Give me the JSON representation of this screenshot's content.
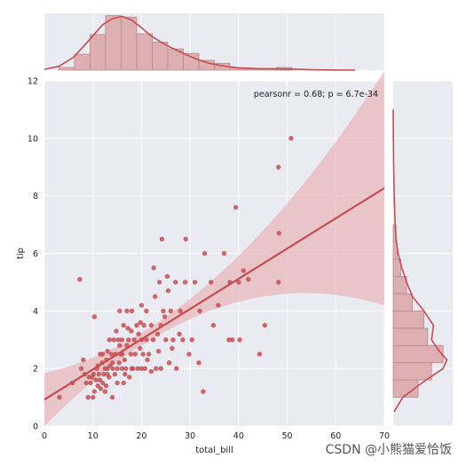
{
  "chart_data": {
    "type": "scatter",
    "title": "",
    "xlabel": "total_bill",
    "ylabel": "tip",
    "xlim": [
      0,
      70
    ],
    "ylim": [
      0,
      12
    ],
    "xticks": [
      0,
      10,
      20,
      30,
      40,
      50,
      60,
      70
    ],
    "yticks": [
      0,
      2,
      4,
      6,
      8,
      10,
      12
    ],
    "grid": true,
    "annotation": "pearsonr = 0.68; p = 6.7e-34",
    "colors": {
      "marker": "#c44e52",
      "hist_fill": "#dba5a6",
      "hist_edge": "#b98a8b",
      "band": "#e8b8bc",
      "panel_bg": "#eaeaf2",
      "grid": "#ffffff"
    },
    "regression": {
      "slope": 0.105,
      "intercept": 0.92,
      "x_range": [
        0,
        70
      ]
    },
    "points": [
      [
        3.1,
        1.0
      ],
      [
        5.8,
        1.5
      ],
      [
        7.3,
        5.1
      ],
      [
        7.6,
        2.0
      ],
      [
        8.3,
        1.8
      ],
      [
        8.6,
        1.5
      ],
      [
        9.0,
        1.0
      ],
      [
        9.5,
        1.5
      ],
      [
        9.8,
        1.7
      ],
      [
        10.1,
        1.8
      ],
      [
        10.3,
        1.2
      ],
      [
        10.3,
        3.8
      ],
      [
        10.6,
        1.6
      ],
      [
        10.8,
        2.0
      ],
      [
        11.0,
        1.4
      ],
      [
        11.0,
        2.1
      ],
      [
        11.2,
        1.8
      ],
      [
        11.4,
        1.6
      ],
      [
        11.6,
        1.3
      ],
      [
        11.9,
        2.2
      ],
      [
        12.0,
        1.5
      ],
      [
        12.0,
        2.5
      ],
      [
        12.2,
        1.8
      ],
      [
        12.5,
        2.0
      ],
      [
        12.7,
        1.4
      ],
      [
        12.8,
        2.3
      ],
      [
        13.0,
        2.0
      ],
      [
        13.0,
        2.6
      ],
      [
        13.3,
        1.7
      ],
      [
        13.4,
        3.0
      ],
      [
        13.5,
        2.1
      ],
      [
        13.8,
        2.5
      ],
      [
        14.0,
        1.0
      ],
      [
        14.1,
        2.0
      ],
      [
        14.3,
        3.0
      ],
      [
        14.5,
        1.8
      ],
      [
        14.7,
        2.5
      ],
      [
        14.8,
        3.3
      ],
      [
        15.0,
        2.0
      ],
      [
        15.0,
        1.5
      ],
      [
        15.2,
        3.0
      ],
      [
        15.4,
        2.2
      ],
      [
        15.5,
        4.0
      ],
      [
        15.7,
        2.5
      ],
      [
        16.0,
        3.0
      ],
      [
        16.0,
        2.0
      ],
      [
        16.3,
        1.5
      ],
      [
        16.3,
        3.5
      ],
      [
        16.5,
        2.3
      ],
      [
        16.8,
        2.0
      ],
      [
        17.0,
        4.0
      ],
      [
        17.0,
        2.8
      ],
      [
        17.3,
        3.0
      ],
      [
        17.5,
        1.7
      ],
      [
        17.8,
        2.5
      ],
      [
        17.9,
        3.3
      ],
      [
        18.0,
        4.0
      ],
      [
        18.2,
        2.0
      ],
      [
        18.5,
        3.0
      ],
      [
        18.7,
        2.5
      ],
      [
        19.0,
        3.5
      ],
      [
        19.2,
        2.0
      ],
      [
        19.4,
        3.2
      ],
      [
        19.7,
        2.7
      ],
      [
        20.0,
        3.0
      ],
      [
        20.0,
        4.2
      ],
      [
        20.3,
        2.5
      ],
      [
        20.5,
        3.5
      ],
      [
        20.7,
        2.0
      ],
      [
        21.0,
        3.0
      ],
      [
        21.0,
        4.0
      ],
      [
        21.5,
        2.5
      ],
      [
        22.0,
        3.5
      ],
      [
        22.0,
        1.9
      ],
      [
        22.4,
        3.0
      ],
      [
        22.8,
        4.5
      ],
      [
        23.0,
        2.0
      ],
      [
        23.3,
        3.2
      ],
      [
        23.7,
        5.0
      ],
      [
        24.0,
        3.5
      ],
      [
        24.0,
        2.0
      ],
      [
        24.5,
        4.0
      ],
      [
        25.0,
        3.0
      ],
      [
        25.3,
        5.2
      ],
      [
        25.7,
        2.2
      ],
      [
        26.0,
        4.0
      ],
      [
        26.5,
        3.0
      ],
      [
        27.0,
        5.0
      ],
      [
        27.2,
        2.0
      ],
      [
        28.0,
        4.0
      ],
      [
        28.5,
        3.0
      ],
      [
        29.0,
        5.0
      ],
      [
        29.8,
        2.5
      ],
      [
        30.4,
        3.0
      ],
      [
        31.0,
        5.0
      ],
      [
        31.8,
        2.2
      ],
      [
        32.0,
        4.0
      ],
      [
        32.7,
        1.2
      ],
      [
        33.0,
        6.0
      ],
      [
        34.3,
        5.0
      ],
      [
        34.8,
        3.5
      ],
      [
        35.8,
        4.2
      ],
      [
        38.0,
        3.0
      ],
      [
        38.7,
        3.0
      ],
      [
        39.4,
        7.6
      ],
      [
        40.0,
        5.0
      ],
      [
        40.2,
        3.0
      ],
      [
        44.3,
        2.5
      ],
      [
        45.4,
        3.5
      ],
      [
        48.2,
        5.0
      ],
      [
        48.3,
        6.7
      ],
      [
        48.2,
        9.0
      ],
      [
        50.8,
        10.0
      ],
      [
        22.5,
        5.5
      ],
      [
        24.2,
        6.5
      ],
      [
        29.1,
        6.5
      ],
      [
        37.0,
        6.0
      ],
      [
        38.2,
        5.0
      ],
      [
        41.0,
        5.4
      ],
      [
        42.0,
        5.1
      ],
      [
        14.0,
        2.2
      ],
      [
        16.0,
        2.5
      ],
      [
        18.0,
        2.0
      ],
      [
        20.0,
        2.0
      ],
      [
        13.0,
        1.8
      ],
      [
        11.5,
        2.5
      ],
      [
        15.5,
        2.8
      ],
      [
        17.2,
        3.4
      ],
      [
        19.8,
        3.6
      ],
      [
        21.2,
        2.3
      ],
      [
        23.5,
        2.6
      ],
      [
        26.3,
        2.7
      ],
      [
        27.8,
        3.2
      ],
      [
        24.8,
        3.8
      ],
      [
        10.0,
        1.0
      ],
      [
        12.5,
        1.2
      ],
      [
        9.2,
        1.7
      ],
      [
        8.0,
        2.3
      ],
      [
        16.6,
        1.8
      ],
      [
        25.5,
        4.7
      ]
    ],
    "top_hist": {
      "bin_edges": [
        3,
        6.2,
        9.4,
        12.6,
        15.8,
        19.0,
        22.2,
        25.4,
        28.6,
        31.8,
        35.0,
        38.2,
        41.4,
        44.6,
        47.8,
        51
      ],
      "density": [
        0.0035,
        0.021,
        0.047,
        0.072,
        0.07,
        0.048,
        0.037,
        0.028,
        0.022,
        0.013,
        0.009,
        0.003,
        0.002,
        0.002,
        0.0035
      ],
      "kde": [
        [
          -3,
          0.0
        ],
        [
          0,
          0.001
        ],
        [
          3,
          0.005
        ],
        [
          6,
          0.017
        ],
        [
          9,
          0.038
        ],
        [
          12,
          0.06
        ],
        [
          14,
          0.068
        ],
        [
          16,
          0.071
        ],
        [
          18,
          0.066
        ],
        [
          20,
          0.056
        ],
        [
          22,
          0.045
        ],
        [
          24,
          0.037
        ],
        [
          26,
          0.03
        ],
        [
          28,
          0.024
        ],
        [
          30,
          0.018
        ],
        [
          32,
          0.013
        ],
        [
          34,
          0.009
        ],
        [
          36,
          0.0065
        ],
        [
          38,
          0.0045
        ],
        [
          40,
          0.003
        ],
        [
          44,
          0.002
        ],
        [
          48,
          0.0016
        ],
        [
          52,
          0.001
        ],
        [
          56,
          0.0004
        ],
        [
          60,
          0.0001
        ],
        [
          64,
          0.0
        ]
      ]
    },
    "right_hist": {
      "bin_edges": [
        1.0,
        1.6,
        2.2,
        2.8,
        3.4,
        4.0,
        4.6,
        5.2,
        5.8,
        6.4,
        7.0
      ],
      "density": [
        0.26,
        0.4,
        0.52,
        0.36,
        0.32,
        0.2,
        0.14,
        0.08,
        0.04,
        0.03
      ],
      "kde": [
        [
          0.5,
          0.01
        ],
        [
          1.0,
          0.1
        ],
        [
          1.5,
          0.3
        ],
        [
          2.0,
          0.52
        ],
        [
          2.3,
          0.56
        ],
        [
          2.6,
          0.48
        ],
        [
          3.0,
          0.4
        ],
        [
          3.5,
          0.42
        ],
        [
          4.0,
          0.32
        ],
        [
          4.5,
          0.2
        ],
        [
          5.0,
          0.14
        ],
        [
          5.5,
          0.09
        ],
        [
          6.0,
          0.05
        ],
        [
          6.5,
          0.03
        ],
        [
          7.0,
          0.02
        ],
        [
          8.0,
          0.01
        ],
        [
          9.0,
          0.005
        ],
        [
          10.0,
          0.002
        ],
        [
          11.0,
          0.0
        ]
      ]
    }
  },
  "watermark": "CSDN @小熊猫爱恰饭"
}
